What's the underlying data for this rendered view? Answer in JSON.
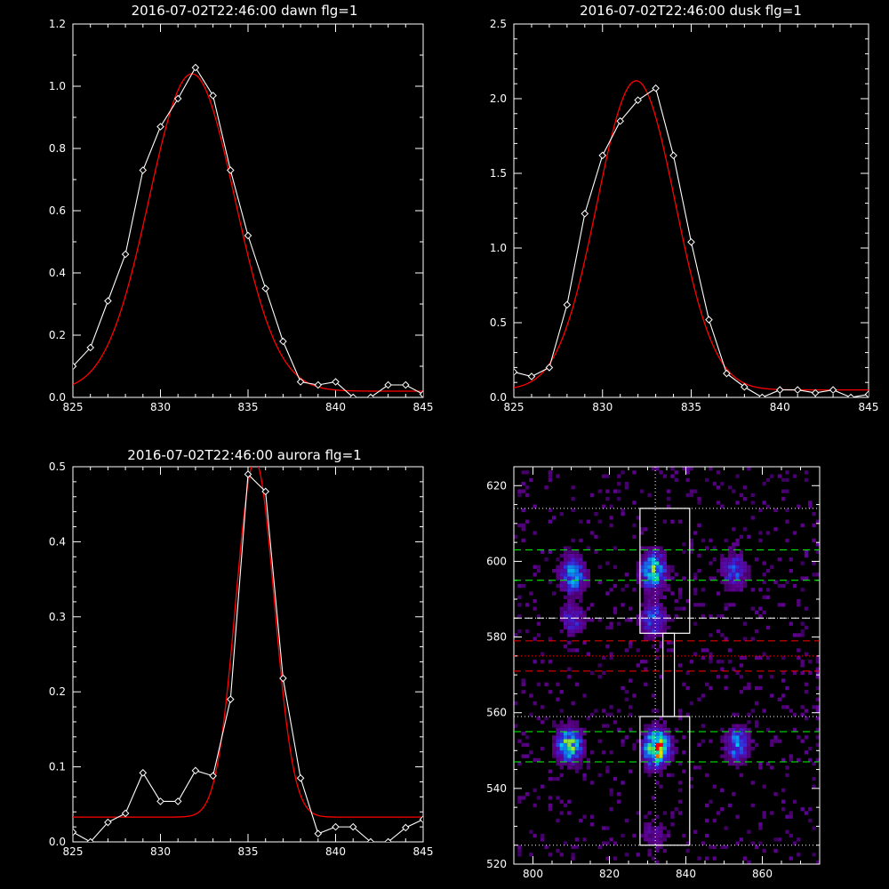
{
  "colors": {
    "background": "#000000",
    "axes": "#ffffff",
    "data_line": "#ffffff",
    "fit_line": "#ff0000",
    "green_dashed": "#00ff00",
    "red_dashed": "#ff0000"
  },
  "chart_data": [
    {
      "type": "line",
      "title": "2016-07-02T22:46:00 dawn flg=1",
      "xlim": [
        825,
        845
      ],
      "ylim": [
        0,
        1.2
      ],
      "xticks": [
        "825",
        "830",
        "835",
        "840",
        "845"
      ],
      "yticks": [
        "0.0",
        "0.2",
        "0.4",
        "0.6",
        "0.8",
        "1.0",
        "1.2"
      ],
      "series": [
        {
          "role": "data",
          "markers": "diamond",
          "x": [
            825,
            826,
            827,
            828,
            829,
            830,
            831,
            832,
            833,
            834,
            835,
            836,
            837,
            838,
            839,
            840,
            841,
            842,
            843,
            844,
            845
          ],
          "y": [
            0.1,
            0.16,
            0.31,
            0.46,
            0.73,
            0.87,
            0.96,
            1.06,
            0.97,
            0.73,
            0.52,
            0.35,
            0.18,
            0.05,
            0.04,
            0.05,
            0.0,
            0.0,
            0.04,
            0.04,
            0.01
          ]
        },
        {
          "role": "fit",
          "model": "gaussian",
          "amplitude": 1.02,
          "center": 831.8,
          "sigma": 2.45,
          "baseline": 0.02
        }
      ]
    },
    {
      "type": "line",
      "title": "2016-07-02T22:46:00 dusk flg=1",
      "xlim": [
        825,
        845
      ],
      "ylim": [
        0,
        2.5
      ],
      "xticks": [
        "825",
        "830",
        "835",
        "840",
        "845"
      ],
      "yticks": [
        "0.0",
        "0.5",
        "1.0",
        "1.5",
        "2.0",
        "2.5"
      ],
      "series": [
        {
          "role": "data",
          "markers": "diamond",
          "x": [
            825,
            826,
            827,
            828,
            829,
            830,
            831,
            832,
            833,
            834,
            835,
            836,
            837,
            838,
            839,
            840,
            841,
            842,
            843,
            844,
            845
          ],
          "y": [
            0.17,
            0.14,
            0.2,
            0.62,
            1.23,
            1.62,
            1.85,
            1.99,
            2.07,
            1.62,
            1.04,
            0.52,
            0.16,
            0.07,
            0.0,
            0.05,
            0.05,
            0.03,
            0.05,
            0.0,
            0.02
          ]
        },
        {
          "role": "fit",
          "model": "gaussian",
          "amplitude": 2.07,
          "center": 831.9,
          "sigma": 2.2,
          "baseline": 0.05
        }
      ]
    },
    {
      "type": "line",
      "title": "2016-07-02T22:46:00 aurora flg=1",
      "xlim": [
        825,
        845
      ],
      "ylim": [
        0,
        0.5
      ],
      "xticks": [
        "825",
        "830",
        "835",
        "840",
        "845"
      ],
      "yticks": [
        "0.0",
        "0.1",
        "0.2",
        "0.3",
        "0.4",
        "0.5"
      ],
      "series": [
        {
          "role": "data",
          "markers": "diamond",
          "x": [
            825,
            826,
            827,
            828,
            829,
            830,
            831,
            832,
            833,
            834,
            835,
            836,
            837,
            838,
            839,
            840,
            841,
            842,
            843,
            844,
            845
          ],
          "y": [
            0.013,
            0.0,
            0.026,
            0.038,
            0.092,
            0.054,
            0.054,
            0.095,
            0.088,
            0.19,
            0.49,
            0.467,
            0.218,
            0.085,
            0.011,
            0.02,
            0.02,
            0.0,
            0.0,
            0.019,
            0.03
          ]
        },
        {
          "role": "fit",
          "model": "gaussian",
          "amplitude": 0.475,
          "center": 835.4,
          "sigma": 1.1,
          "baseline": 0.033
        }
      ]
    },
    {
      "type": "heatmap",
      "title": "",
      "xlim": [
        795,
        875
      ],
      "ylim": [
        520,
        625
      ],
      "xticks": [
        "800",
        "820",
        "840",
        "860"
      ],
      "yticks": [
        "520",
        "540",
        "560",
        "580",
        "600",
        "620"
      ],
      "clusters": [
        {
          "x": 810,
          "y": 596,
          "intensity": 0.55
        },
        {
          "x": 831,
          "y": 597,
          "intensity": 0.7
        },
        {
          "x": 852,
          "y": 597,
          "intensity": 0.4
        },
        {
          "x": 810,
          "y": 584,
          "intensity": 0.3
        },
        {
          "x": 831,
          "y": 584,
          "intensity": 0.4
        },
        {
          "x": 809,
          "y": 551,
          "intensity": 0.7
        },
        {
          "x": 832,
          "y": 550,
          "intensity": 1.0
        },
        {
          "x": 853,
          "y": 551,
          "intensity": 0.5
        },
        {
          "x": 831,
          "y": 527,
          "intensity": 0.2
        }
      ],
      "overlay": {
        "vertical_dotted_x": 832,
        "white_dotted_y": [
          614,
          585,
          559,
          525
        ],
        "green_dashed_y": [
          603,
          595,
          555,
          547
        ],
        "white_dashed_y": [
          585
        ],
        "red_dashed_y": [
          579,
          571
        ],
        "red_dotted_y": [
          575
        ],
        "box_upper": {
          "x0": 828,
          "x1": 841,
          "y0": 581,
          "y1": 614
        },
        "box_lower": {
          "x0": 828,
          "x1": 841,
          "y0": 525,
          "y1": 559
        },
        "connector": {
          "x0": 834,
          "x1": 837,
          "y0": 559,
          "y1": 581
        }
      }
    }
  ]
}
